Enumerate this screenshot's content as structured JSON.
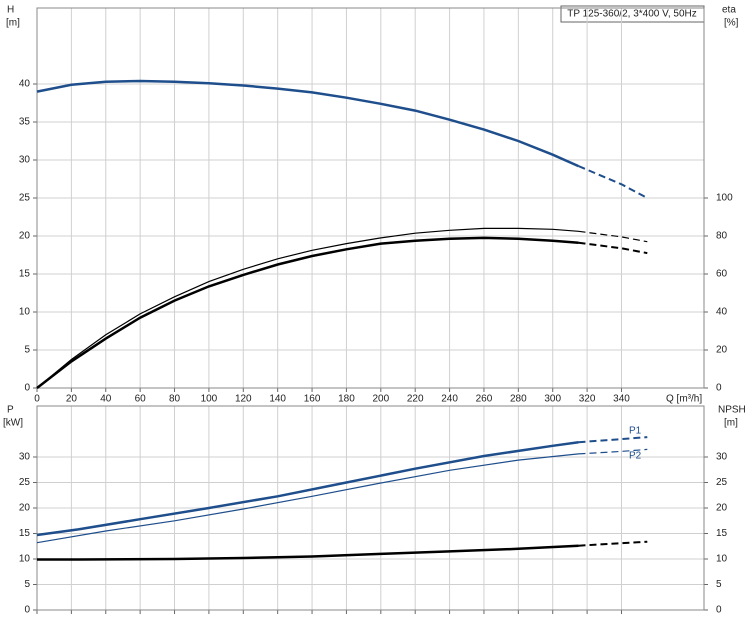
{
  "chart_data": [
    {
      "type": "line",
      "title": "TP 125-360/2, 3*400 V, 50Hz",
      "x_label": "Q [m³/h]",
      "y_label": "H",
      "y_unit": "[m]",
      "y2_label": "eta",
      "y2_unit": "[%]",
      "xlim": [
        0,
        388
      ],
      "xticks": [
        0,
        20,
        40,
        60,
        80,
        100,
        120,
        140,
        160,
        180,
        200,
        220,
        240,
        260,
        280,
        300,
        320,
        340
      ],
      "ylim": [
        0,
        50
      ],
      "yticks": [
        0,
        5,
        10,
        15,
        20,
        25,
        30,
        35,
        40
      ],
      "y2lim": [
        0,
        200
      ],
      "y2ticks": [
        0,
        20,
        40,
        60,
        80,
        100
      ],
      "grid": true,
      "series": [
        {
          "color": "#1f4e8c",
          "width": 2.5,
          "style": "solid",
          "x": [
            0,
            20,
            40,
            60,
            80,
            100,
            120,
            140,
            160,
            180,
            200,
            220,
            240,
            260,
            280,
            300,
            315
          ],
          "values": [
            39,
            39.9,
            40.3,
            40.4,
            40.3,
            40.1,
            39.8,
            39.4,
            38.9,
            38.2,
            37.4,
            36.5,
            35.3,
            34,
            32.5,
            30.7,
            29.2
          ]
        },
        {
          "color": "#1f4e8c",
          "width": 2,
          "style": "dashed",
          "x": [
            315,
            340,
            355
          ],
          "values": [
            29.2,
            26.8,
            25
          ]
        },
        {
          "color": "#000000",
          "width": 1.2,
          "style": "solid",
          "axis": "y2",
          "x": [
            0,
            20,
            40,
            60,
            80,
            100,
            120,
            140,
            160,
            180,
            200,
            220,
            240,
            260,
            280,
            300,
            315
          ],
          "values": [
            0,
            15,
            28,
            39,
            48,
            56,
            62.5,
            68,
            72.5,
            76,
            79,
            81.5,
            83,
            84,
            84,
            83.5,
            82.5
          ]
        },
        {
          "color": "#000000",
          "width": 1.2,
          "style": "dashed",
          "axis": "y2",
          "x": [
            315,
            340,
            355
          ],
          "values": [
            82.5,
            79.5,
            77
          ]
        },
        {
          "color": "#000000",
          "width": 2.5,
          "style": "solid",
          "axis": "y2",
          "x": [
            0,
            20,
            40,
            60,
            80,
            100,
            120,
            140,
            160,
            180,
            200,
            220,
            240,
            260,
            280,
            300,
            315
          ],
          "values": [
            0,
            14,
            26,
            37,
            46,
            53.5,
            59.5,
            65,
            69.5,
            73,
            76,
            77.5,
            78.5,
            79,
            78.5,
            77.5,
            76.5
          ]
        },
        {
          "color": "#000000",
          "width": 2,
          "style": "dashed",
          "axis": "y2",
          "x": [
            315,
            340,
            355
          ],
          "values": [
            76.5,
            73.5,
            71
          ]
        }
      ]
    },
    {
      "type": "line",
      "y_label": "P",
      "y_unit": "[kW]",
      "y2_label": "NPSH",
      "y2_unit": "[m]",
      "xlim": [
        0,
        388
      ],
      "ylim": [
        0,
        40
      ],
      "yticks": [
        0,
        5,
        10,
        15,
        20,
        25,
        30
      ],
      "y2lim": [
        0,
        40
      ],
      "y2ticks": [
        0,
        5,
        10,
        15,
        20,
        25,
        30
      ],
      "grid": true,
      "annotations": [
        "P1",
        "P2"
      ],
      "series": [
        {
          "color": "#1f4e8c",
          "width": 2.5,
          "style": "solid",
          "x": [
            0,
            24,
            60,
            100,
            140,
            180,
            220,
            260,
            300,
            315
          ],
          "values": [
            14.7,
            15.8,
            17.8,
            20,
            22.3,
            25,
            27.7,
            30.2,
            32.2,
            32.9
          ]
        },
        {
          "color": "#1f4e8c",
          "width": 2,
          "style": "dashed",
          "x": [
            315,
            340,
            355
          ],
          "values": [
            32.9,
            33.5,
            33.9
          ]
        },
        {
          "color": "#1f4e8c",
          "width": 1.2,
          "style": "solid",
          "x": [
            0,
            40,
            80,
            120,
            160,
            200,
            240,
            280,
            315
          ],
          "values": [
            13.2,
            15.5,
            17.5,
            19.8,
            22.3,
            24.9,
            27.4,
            29.4,
            30.6
          ]
        },
        {
          "color": "#1f4e8c",
          "width": 1.2,
          "style": "dashed",
          "x": [
            315,
            340,
            355
          ],
          "values": [
            30.6,
            31.1,
            31.5
          ]
        },
        {
          "color": "#000000",
          "width": 2.5,
          "style": "solid",
          "axis": "y2",
          "x": [
            0,
            24,
            80,
            120,
            160,
            200,
            240,
            280,
            315
          ],
          "values": [
            9.9,
            9.9,
            10,
            10.2,
            10.5,
            11,
            11.5,
            12,
            12.6
          ]
        },
        {
          "color": "#000000",
          "width": 2,
          "style": "dashed",
          "axis": "y2",
          "x": [
            315,
            340,
            355
          ],
          "values": [
            12.6,
            13.1,
            13.4
          ]
        }
      ]
    }
  ]
}
